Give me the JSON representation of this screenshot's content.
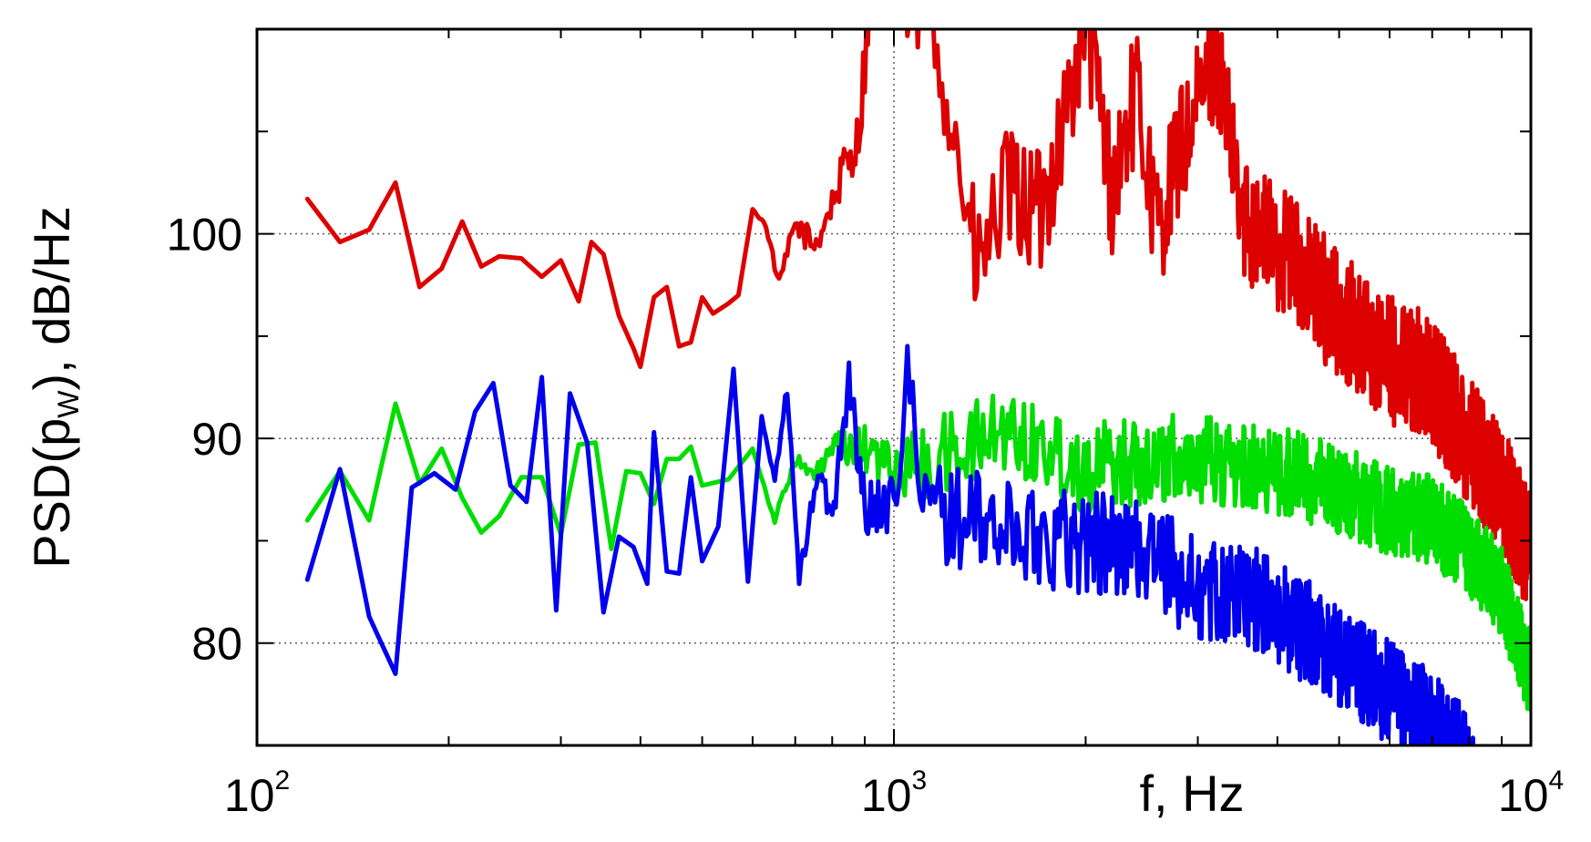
{
  "chart_data": {
    "type": "line",
    "xscale": "log",
    "xlim": [
      100,
      10000
    ],
    "ylim": [
      75,
      110
    ],
    "grid": true,
    "xlabel": "f, Hz",
    "ylabel_main": "PSD(p",
    "ylabel_sub": "W",
    "ylabel_tail": "), dB/Hz",
    "xticks": [
      {
        "value": 100,
        "base": "10",
        "exp": "2"
      },
      {
        "value": 1000,
        "base": "10",
        "exp": "3"
      },
      {
        "value": 10000,
        "base": "10",
        "exp": "4"
      }
    ],
    "yticks": [
      {
        "value": 80,
        "label": "80"
      },
      {
        "value": 90,
        "label": "90"
      },
      {
        "value": 100,
        "label": "100"
      }
    ],
    "series": [
      {
        "color": "#dd0000",
        "anchors": [
          [
            120,
            101.7
          ],
          [
            135,
            99.6
          ],
          [
            150,
            100.2
          ],
          [
            165,
            102.5
          ],
          [
            180,
            97.4
          ],
          [
            195,
            98.3
          ],
          [
            210,
            100.6
          ],
          [
            225,
            98.4
          ],
          [
            240,
            98.9
          ],
          [
            260,
            98.8
          ],
          [
            280,
            97.9
          ],
          [
            300,
            98.7
          ],
          [
            320,
            96.7
          ],
          [
            335,
            99.6
          ],
          [
            350,
            99.0
          ],
          [
            370,
            96.0
          ],
          [
            390,
            94.4
          ],
          [
            400,
            93.5
          ],
          [
            420,
            96.9
          ],
          [
            440,
            97.4
          ],
          [
            460,
            94.5
          ],
          [
            480,
            94.7
          ],
          [
            500,
            96.9
          ],
          [
            520,
            96.1
          ],
          [
            550,
            96.6
          ],
          [
            570,
            97.0
          ],
          [
            600,
            101.2
          ],
          [
            630,
            100.4
          ],
          [
            660,
            97.5
          ],
          [
            700,
            100.5
          ],
          [
            750,
            99.4
          ],
          [
            800,
            101.5
          ],
          [
            850,
            103.8
          ],
          [
            880,
            104.7
          ],
          [
            900,
            108.5
          ],
          [
            920,
            112
          ],
          [
            1000,
            111
          ],
          [
            1100,
            111
          ],
          [
            1200,
            108
          ],
          [
            1350,
            98
          ],
          [
            1500,
            102
          ],
          [
            1700,
            101
          ],
          [
            1900,
            107
          ],
          [
            2000,
            111
          ],
          [
            2200,
            102
          ],
          [
            2400,
            107
          ],
          [
            2600,
            100
          ],
          [
            2800,
            104
          ],
          [
            3000,
            106
          ],
          [
            3200,
            109
          ],
          [
            3500,
            101
          ],
          [
            3800,
            100
          ],
          [
            4200,
            99
          ],
          [
            4700,
            97
          ],
          [
            5200,
            95.5
          ],
          [
            5800,
            94
          ],
          [
            6500,
            93.5
          ],
          [
            7200,
            92
          ],
          [
            8000,
            90
          ],
          [
            9000,
            87.5
          ],
          [
            10000,
            84
          ]
        ],
        "noise": 3.2
      },
      {
        "color": "#00dd00",
        "anchors": [
          [
            120,
            86.0
          ],
          [
            135,
            88.4
          ],
          [
            150,
            86.0
          ],
          [
            165,
            91.7
          ],
          [
            180,
            87.8
          ],
          [
            195,
            89.5
          ],
          [
            210,
            87.1
          ],
          [
            225,
            85.4
          ],
          [
            240,
            86.2
          ],
          [
            260,
            88.1
          ],
          [
            280,
            88.1
          ],
          [
            300,
            85.3
          ],
          [
            320,
            89.7
          ],
          [
            340,
            89.8
          ],
          [
            360,
            84.6
          ],
          [
            380,
            88.4
          ],
          [
            400,
            88.3
          ],
          [
            420,
            86.8
          ],
          [
            440,
            89.0
          ],
          [
            460,
            89.0
          ],
          [
            480,
            89.6
          ],
          [
            500,
            87.7
          ],
          [
            550,
            88.0
          ],
          [
            600,
            89.5
          ],
          [
            650,
            86.0
          ],
          [
            700,
            89.0
          ],
          [
            750,
            88.0
          ],
          [
            800,
            89.5
          ],
          [
            900,
            89.5
          ],
          [
            1000,
            88.5
          ],
          [
            1200,
            89.0
          ],
          [
            1500,
            90.5
          ],
          [
            2000,
            88.5
          ],
          [
            2500,
            89.0
          ],
          [
            3000,
            89.0
          ],
          [
            3500,
            88.5
          ],
          [
            4000,
            88.5
          ],
          [
            5000,
            87.5
          ],
          [
            6000,
            86.5
          ],
          [
            7000,
            86.0
          ],
          [
            8000,
            84.5
          ],
          [
            9000,
            82.5
          ],
          [
            10000,
            78.5
          ]
        ],
        "noise": 2.2
      },
      {
        "color": "#0000ee",
        "anchors": [
          [
            120,
            83.1
          ],
          [
            135,
            88.5
          ],
          [
            150,
            81.3
          ],
          [
            165,
            78.5
          ],
          [
            175,
            87.6
          ],
          [
            190,
            88.3
          ],
          [
            205,
            87.5
          ],
          [
            220,
            91.3
          ],
          [
            235,
            92.7
          ],
          [
            250,
            87.7
          ],
          [
            265,
            86.9
          ],
          [
            280,
            93.0
          ],
          [
            295,
            81.6
          ],
          [
            310,
            92.2
          ],
          [
            330,
            89.8
          ],
          [
            350,
            81.5
          ],
          [
            370,
            85.2
          ],
          [
            390,
            84.7
          ],
          [
            410,
            82.9
          ],
          [
            420,
            90.3
          ],
          [
            440,
            83.5
          ],
          [
            460,
            83.4
          ],
          [
            480,
            88.1
          ],
          [
            500,
            84.0
          ],
          [
            530,
            85.7
          ],
          [
            560,
            93.4
          ],
          [
            590,
            83.0
          ],
          [
            620,
            91.0
          ],
          [
            650,
            88.0
          ],
          [
            680,
            92.5
          ],
          [
            710,
            83.0
          ],
          [
            760,
            88.5
          ],
          [
            800,
            86.0
          ],
          [
            850,
            93.0
          ],
          [
            900,
            86.5
          ],
          [
            1000,
            87.0
          ],
          [
            1050,
            93.5
          ],
          [
            1100,
            87.0
          ],
          [
            1300,
            86.0
          ],
          [
            1500,
            85.5
          ],
          [
            2000,
            85.0
          ],
          [
            2500,
            84.5
          ],
          [
            3000,
            82.5
          ],
          [
            3500,
            82.5
          ],
          [
            4000,
            81.5
          ],
          [
            5000,
            79.5
          ],
          [
            6000,
            77.5
          ],
          [
            7000,
            76.0
          ],
          [
            8000,
            74.0
          ],
          [
            8500,
            72.0
          ]
        ],
        "noise": 2.6
      }
    ]
  }
}
